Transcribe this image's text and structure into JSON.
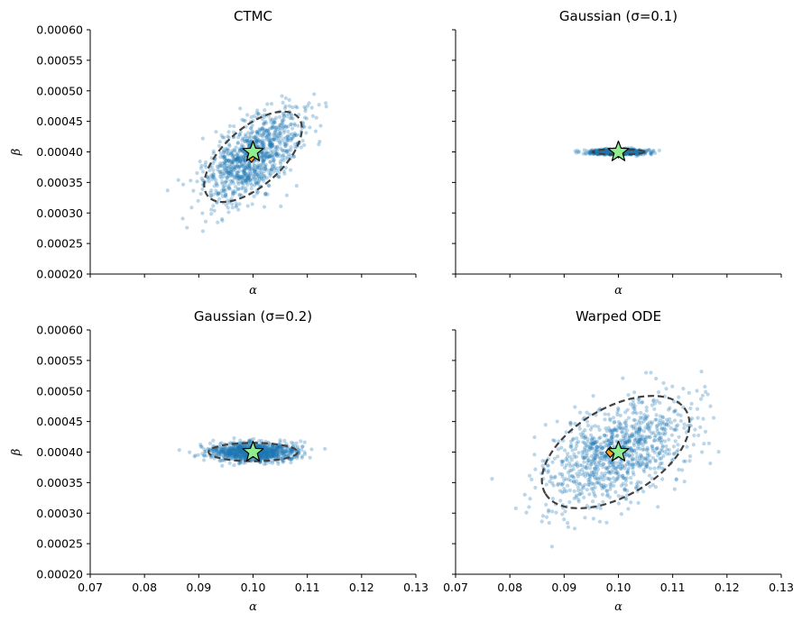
{
  "figure": {
    "shared_x_tick_labels": [
      "0.07",
      "0.08",
      "0.09",
      "0.10",
      "0.11",
      "0.12",
      "0.13"
    ],
    "shared_y_tick_labels": [
      "0.00020",
      "0.00025",
      "0.00030",
      "0.00035",
      "0.00040",
      "0.00045",
      "0.00050",
      "0.00055",
      "0.00060"
    ]
  },
  "colors": {
    "points": "#1f77b4",
    "ellipse": "#404040",
    "star_fill": "#90ee90",
    "diamond_fill": "#ff9f1c",
    "marker_edge": "#000000"
  },
  "chart_data": [
    {
      "type": "scatter",
      "title": "CTMC",
      "xlabel": "α",
      "ylabel": "β",
      "xlim": [
        0.07,
        0.13
      ],
      "ylim": [
        0.0002,
        0.0006
      ],
      "show_x_tick_labels": false,
      "show_y_tick_labels": true,
      "n_points": 1000,
      "cloud": {
        "mean": [
          0.1,
          0.000392
        ],
        "sd": [
          0.0045,
          3.7e-05
        ],
        "corr": 0.62
      },
      "ellipse": {
        "center": [
          0.1,
          0.000392
        ],
        "semi_axes_sd": 2,
        "sd": [
          0.0045,
          3.7e-05
        ],
        "corr": 0.62
      },
      "star": [
        0.1,
        0.0004
      ],
      "diamond": [
        0.0997,
        0.000392
      ]
    },
    {
      "type": "scatter",
      "title": "Gaussian (σ=0.1)",
      "xlabel": "α",
      "ylabel": "",
      "xlim": [
        0.07,
        0.13
      ],
      "ylim": [
        0.0002,
        0.0006
      ],
      "show_x_tick_labels": false,
      "show_y_tick_labels": false,
      "n_points": 1000,
      "cloud": {
        "mean": [
          0.1,
          0.0004
        ],
        "sd": [
          0.0024,
          2.2e-06
        ],
        "corr": 0.0
      },
      "ellipse": {
        "center": [
          0.1,
          0.0004
        ],
        "semi_axes_sd": 2,
        "sd": [
          0.0024,
          2.2e-06
        ],
        "corr": 0.0
      },
      "star": [
        0.1,
        0.0004
      ],
      "diamond": [
        0.1,
        0.000399
      ]
    },
    {
      "type": "scatter",
      "title": "Gaussian (σ=0.2)",
      "xlabel": "α",
      "ylabel": "β",
      "xlim": [
        0.07,
        0.13
      ],
      "ylim": [
        0.0002,
        0.0006
      ],
      "show_x_tick_labels": true,
      "show_y_tick_labels": true,
      "n_points": 1000,
      "cloud": {
        "mean": [
          0.1,
          0.0004
        ],
        "sd": [
          0.0041,
          7.5e-06
        ],
        "corr": 0.0
      },
      "ellipse": {
        "center": [
          0.1,
          0.0004
        ],
        "semi_axes_sd": 2,
        "sd": [
          0.0041,
          7.5e-06
        ],
        "corr": 0.0
      },
      "star": [
        0.1,
        0.0004
      ],
      "diamond": [
        0.1,
        0.0004
      ]
    },
    {
      "type": "scatter",
      "title": "Warped ODE",
      "xlabel": "α",
      "ylabel": "",
      "xlim": [
        0.07,
        0.13
      ],
      "ylim": [
        0.0002,
        0.0006
      ],
      "show_x_tick_labels": true,
      "show_y_tick_labels": false,
      "n_points": 1000,
      "cloud": {
        "mean": [
          0.0995,
          0.0004
        ],
        "sd": [
          0.0068,
          4.6e-05
        ],
        "corr": 0.5
      },
      "ellipse": {
        "center": [
          0.0995,
          0.0004
        ],
        "semi_axes_sd": 2,
        "sd": [
          0.0068,
          4.6e-05
        ],
        "corr": 0.5
      },
      "star": [
        0.1,
        0.0004
      ],
      "diamond": [
        0.0985,
        0.0004
      ]
    }
  ]
}
